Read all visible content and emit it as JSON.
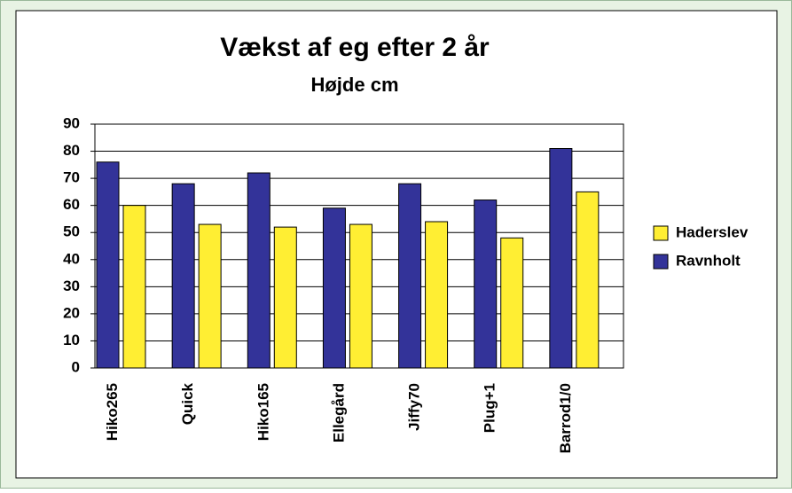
{
  "chart_data": {
    "type": "bar",
    "title": "Vækst af eg efter 2 år",
    "subtitle": "Højde cm",
    "categories": [
      "Hiko265",
      "Quick",
      "Hiko165",
      "Ellegård",
      "Jiffy70",
      "Plug+1",
      "Barrod1/0"
    ],
    "series": [
      {
        "name": "Ravnholt",
        "color": "#333399",
        "values": [
          76,
          68,
          72,
          59,
          68,
          62,
          81
        ]
      },
      {
        "name": "Haderslev",
        "color": "#ffee33",
        "values": [
          60,
          53,
          52,
          53,
          54,
          48,
          65
        ]
      }
    ],
    "ylim": [
      0,
      90
    ],
    "yticks": [
      0,
      10,
      20,
      30,
      40,
      50,
      60,
      70,
      80,
      90
    ],
    "grid": true,
    "legend": "right"
  }
}
